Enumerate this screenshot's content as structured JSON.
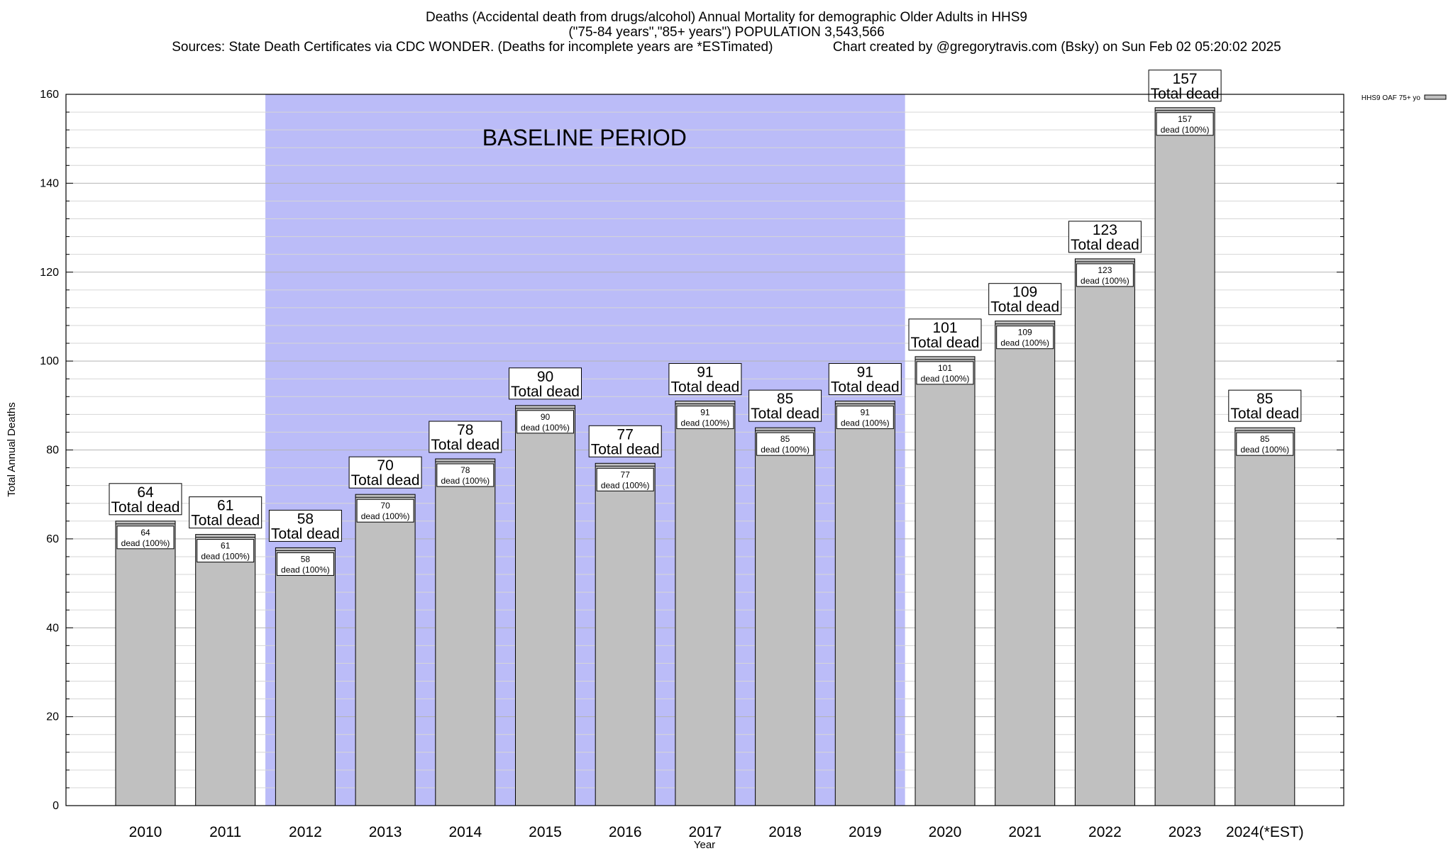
{
  "title": {
    "line1": "Deaths (Accidental death from drugs/alcohol) Annual Mortality for demographic Older Adults in HHS9",
    "line2": "(\"75-84 years\",\"85+ years\") POPULATION 3,543,566",
    "line3_left": "Sources: State Death Certificates via CDC WONDER. (Deaths for incomplete years are *ESTimated)",
    "line3_right": "Chart created by @gregorytravis.com (Bsky) on Sun Feb 02 05:20:02 2025"
  },
  "colors": {
    "bar_fill": "#c0c0c0",
    "baseline_band": "#bbbcf8",
    "grid": "#c8c8c8"
  },
  "chart_data": {
    "type": "bar",
    "xlabel": "Year",
    "ylabel": "Total Annual Deaths",
    "ylim": [
      0,
      160
    ],
    "yticks": [
      0,
      20,
      40,
      60,
      80,
      100,
      120,
      140,
      160
    ],
    "minor_tick_step": 4,
    "grid": true,
    "legend": {
      "placement": "top-right",
      "entries": [
        "HHS9 OAF 75+ yo"
      ]
    },
    "categories": [
      "2010",
      "2011",
      "2012",
      "2013",
      "2014",
      "2015",
      "2016",
      "2017",
      "2018",
      "2019",
      "2020",
      "2021",
      "2022",
      "2023",
      "2024(*EST)"
    ],
    "series": [
      {
        "name": "HHS9 OAF 75+ yo",
        "values": [
          64,
          61,
          58,
          70,
          78,
          90,
          77,
          91,
          85,
          91,
          101,
          109,
          123,
          157,
          85
        ]
      }
    ],
    "annotation_top_suffix": "Total dead",
    "annotation_inner_suffix": "dead (100%)",
    "baseline_period": {
      "label": "BASELINE PERIOD",
      "from": "2012",
      "to": "2019"
    }
  }
}
